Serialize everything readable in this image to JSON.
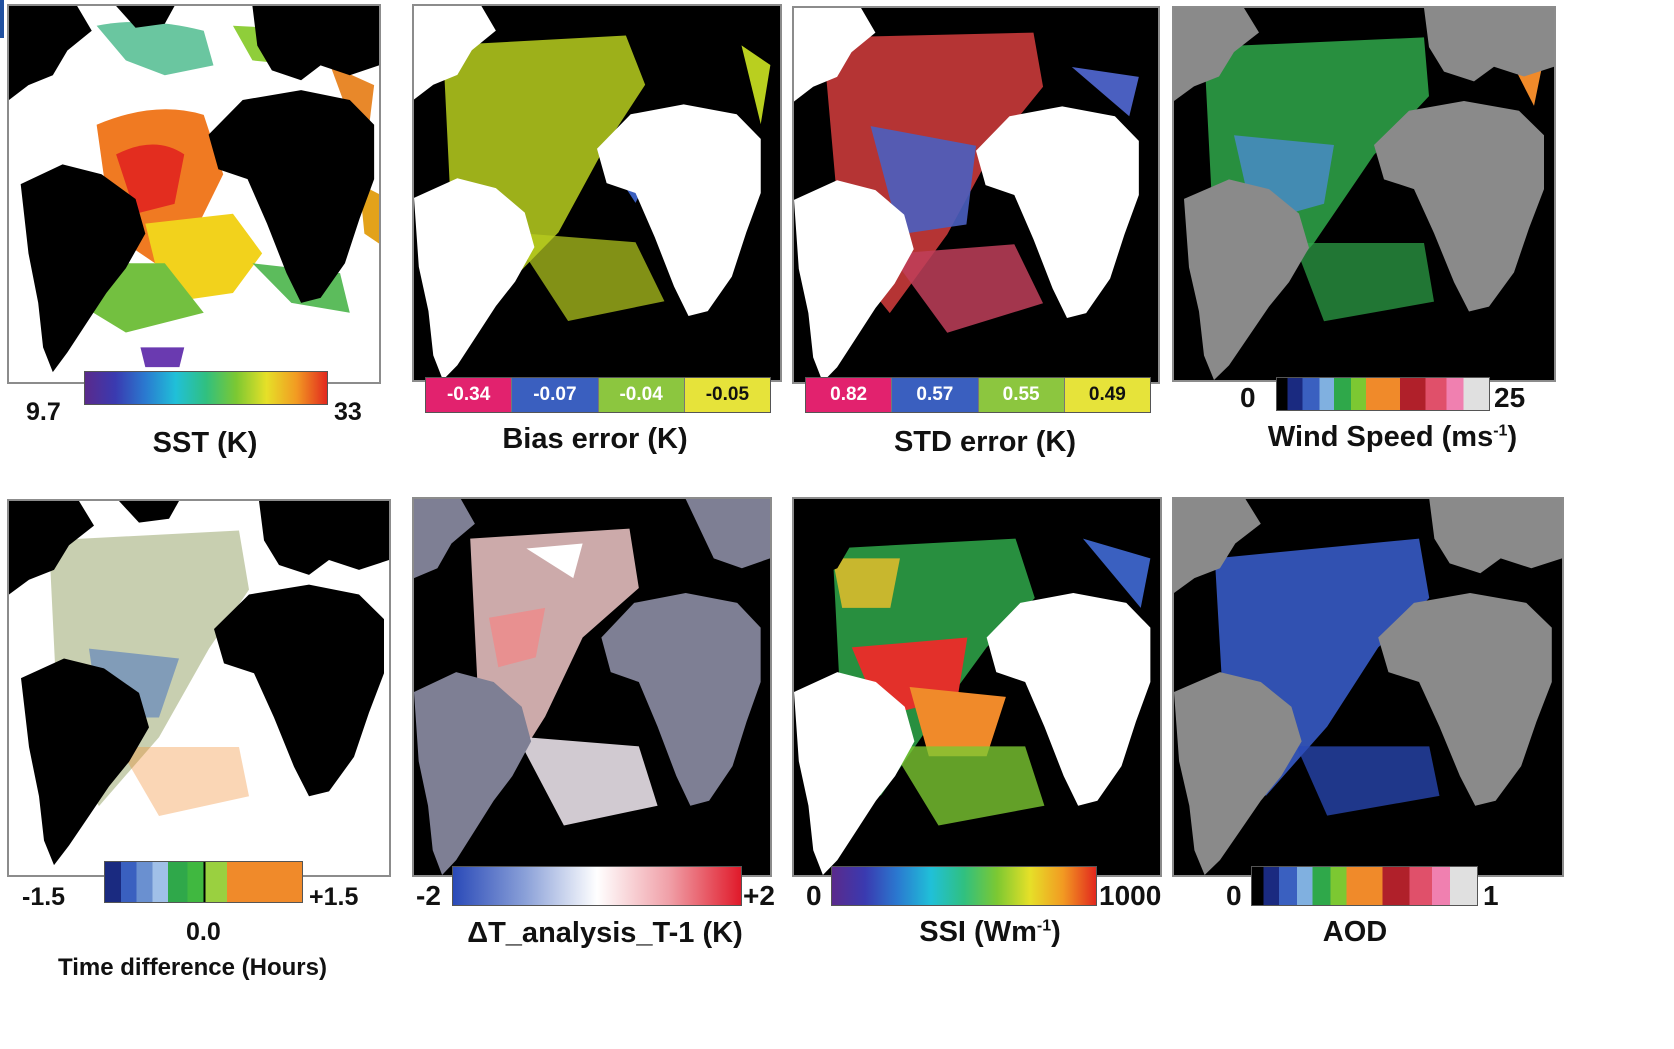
{
  "colors": {
    "land_black": "#000000",
    "land_white": "#ffffff",
    "land_grey": "#8a8a8a",
    "land_bluegrey": "#7e7f94"
  },
  "panels": [
    {
      "title": "SST (K)",
      "min": "9.7",
      "max": "33",
      "colorbar": "rainbow"
    },
    {
      "title": "Bias error (K)",
      "values": [
        "-0.34",
        "-0.07",
        "-0.04",
        "-0.05"
      ],
      "colors": [
        "#e2226e",
        "#3a5fbf",
        "#8cc63f",
        "#e6e33a"
      ],
      "text_colors": [
        "#ffffff",
        "#ffffff",
        "#ffffff",
        "#111111"
      ]
    },
    {
      "title": "STD error (K)",
      "values": [
        "0.82",
        "0.57",
        "0.55",
        "0.49"
      ],
      "colors": [
        "#e2226e",
        "#3a5fbf",
        "#8cc63f",
        "#e6e33a"
      ],
      "text_colors": [
        "#ffffff",
        "#ffffff",
        "#ffffff",
        "#111111"
      ]
    },
    {
      "title_main": "Wind Speed (ms",
      "title_sup": "-1",
      "title_end": ")",
      "min": "0",
      "max": "25",
      "colorbar": "segmented"
    },
    {
      "title": "Time difference (Hours)",
      "min": "-1.5",
      "mid": "0.0",
      "max": "+1.5",
      "colorbar": "segmented-short"
    },
    {
      "title": "ΔT_analysis_T-1 (K)",
      "min": "-2",
      "max": "+2",
      "colorbar": "diverging"
    },
    {
      "title_main": "SSI (Wm",
      "title_sup": "-1",
      "title_end": ")",
      "min": "0",
      "max": "1000",
      "colorbar": "rainbow"
    },
    {
      "title": "AOD",
      "min": "0",
      "max": "1",
      "colorbar": "segmented"
    }
  ]
}
